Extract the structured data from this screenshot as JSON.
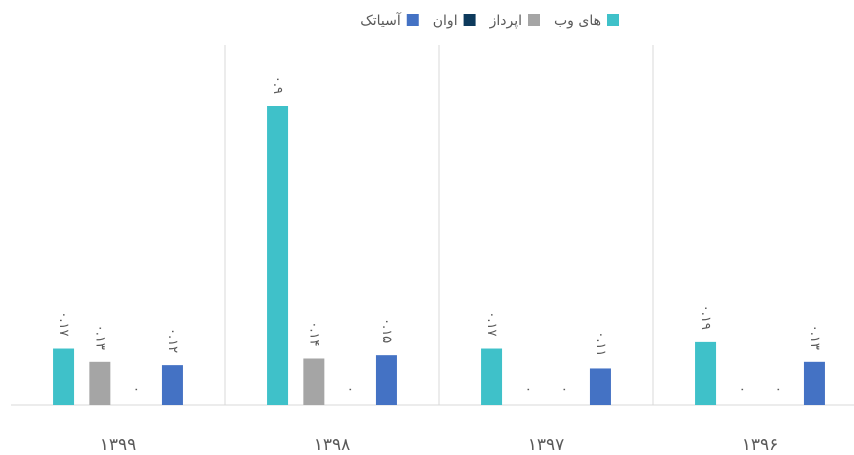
{
  "chart_data": {
    "type": "bar",
    "categories": [
      "۱۳۹۹",
      "۱۳۹۸",
      "۱۳۹۷",
      "۱۳۹۶"
    ],
    "series": [
      {
        "name": "های وب",
        "color": "#3fc1c9",
        "values": [
          0.17,
          0.9,
          0.17,
          0.19
        ],
        "value_labels": [
          "۰.۱۷",
          "۰.۹",
          "۰.۱۷",
          "۰.۱۹"
        ]
      },
      {
        "name": "اپرداز",
        "color": "#a5a5a5",
        "values": [
          0.13,
          0.14,
          0,
          0
        ],
        "value_labels": [
          "۰.۱۳",
          "۰.۱۴",
          "۰",
          "۰"
        ]
      },
      {
        "name": "اوان",
        "color": "#0d3a5c",
        "values": [
          0,
          0,
          0,
          0
        ],
        "value_labels": [
          "۰",
          "۰",
          "۰",
          "۰"
        ]
      },
      {
        "name": "آسیاتک",
        "color": "#4472c4",
        "values": [
          0.12,
          0.15,
          0.11,
          0.13
        ],
        "value_labels": [
          "۰.۱۲",
          "۰.۱۵",
          "۰.۱۱",
          "۰.۱۳"
        ]
      }
    ],
    "legend": "top"
  }
}
